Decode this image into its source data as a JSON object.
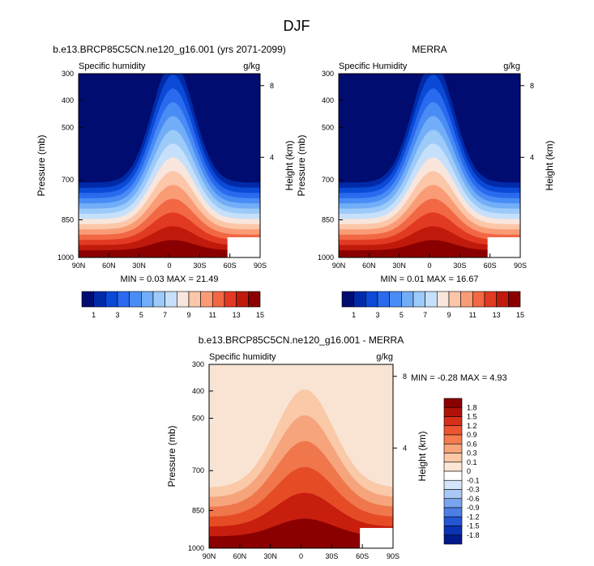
{
  "figure": {
    "title": "DJF"
  },
  "chart_data": [
    {
      "type": "heatmap",
      "title": "b.e13.BRCP85C5CN.ne120_g16.001 (yrs 2071-2099)",
      "left_label": "Specific humidity",
      "right_label": "g/kg",
      "ylabel": "Pressure (mb)",
      "ylabel_right": "Height (km)",
      "x_ticks": [
        "90N",
        "60N",
        "30N",
        "0",
        "30S",
        "60S",
        "90S"
      ],
      "y_ticks": [
        "300",
        "400",
        "500",
        "700",
        "850",
        "1000"
      ],
      "y_right_ticks": [
        "8",
        "4"
      ],
      "stats_text": "MIN =  0.03  MAX = 21.49",
      "min": 0.03,
      "max": 21.49,
      "colorbar_labels": [
        "1",
        "3",
        "5",
        "7",
        "9",
        "11",
        "13",
        "15"
      ]
    },
    {
      "type": "heatmap",
      "title": "MERRA",
      "left_label": "Specific Humidity",
      "right_label": "g/kg",
      "ylabel": "Pressure (mb)",
      "ylabel_right": "Height (km)",
      "x_ticks": [
        "90N",
        "60N",
        "30N",
        "0",
        "30S",
        "60S",
        "90S"
      ],
      "y_ticks": [
        "300",
        "400",
        "500",
        "700",
        "850",
        "1000"
      ],
      "y_right_ticks": [
        "8",
        "4"
      ],
      "stats_text": "MIN =  0.01  MAX = 16.67",
      "min": 0.01,
      "max": 16.67,
      "colorbar_labels": [
        "1",
        "3",
        "5",
        "7",
        "9",
        "11",
        "13",
        "15"
      ]
    },
    {
      "type": "heatmap",
      "title": "b.e13.BRCP85C5CN.ne120_g16.001 - MERRA",
      "left_label": "Specific humidity",
      "right_label": "g/kg",
      "ylabel": "Pressure (mb)",
      "ylabel_right": "Height (km)",
      "x_ticks": [
        "90N",
        "60N",
        "30N",
        "0",
        "30S",
        "60S",
        "90S"
      ],
      "y_ticks": [
        "300",
        "400",
        "500",
        "700",
        "850",
        "1000"
      ],
      "y_right_ticks": [
        "8",
        "4"
      ],
      "stats_text": "MIN = -0.28  MAX =  4.93",
      "min": -0.28,
      "max": 4.93,
      "colorbar_labels": [
        "1.8",
        "1.5",
        "1.2",
        "0.9",
        "0.6",
        "0.3",
        "0.1",
        "0",
        "-0.1",
        "-0.3",
        "-0.6",
        "-0.9",
        "-1.2",
        "-1.5",
        "-1.8"
      ]
    }
  ],
  "palette": {
    "humidity": [
      "#000c70",
      "#002aa8",
      "#0a4ad6",
      "#2a6aee",
      "#4a8cf5",
      "#72aef8",
      "#9ccaf9",
      "#c6e0fb",
      "#f8e6dc",
      "#fcc6a8",
      "#f99c76",
      "#f26844",
      "#e23a22",
      "#c01a0c",
      "#8a0000"
    ],
    "difference": [
      "#f9e4d4",
      "#f9c9a8",
      "#f6a47c",
      "#f0764c",
      "#e54c26",
      "#c81e0e",
      "#8a0000"
    ],
    "difference_bar": [
      "#8a0000",
      "#b0120a",
      "#d62f1a",
      "#ec5530",
      "#f57c4e",
      "#f9a47a",
      "#fcc8a6",
      "#fde6d6",
      "#ffffff",
      "#d4e4fb",
      "#aac8f6",
      "#7aa4ef",
      "#4c7ee6",
      "#2456d4",
      "#0a32b4",
      "#001a8c"
    ]
  }
}
